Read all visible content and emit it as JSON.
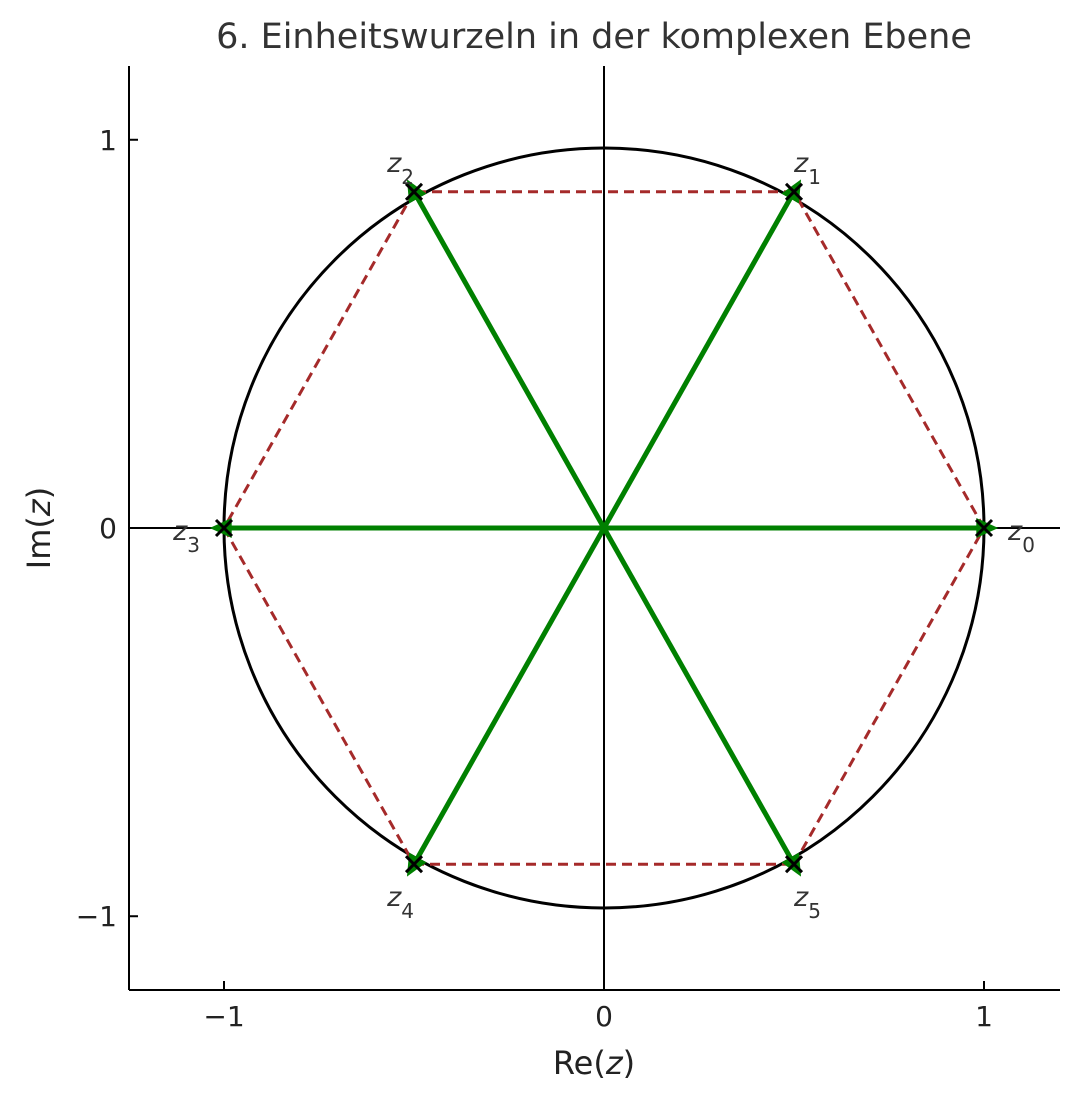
{
  "chart_data": {
    "type": "scatter",
    "title": "6. Einheitswurzeln in der komplexen Ebene",
    "xlabel": {
      "prefix": "Re(",
      "var": "z",
      "suffix": ")"
    },
    "ylabel": {
      "prefix": "Im(",
      "var": "z",
      "suffix": ")"
    },
    "xlim": [
      -1.25,
      1.2
    ],
    "ylim": [
      -1.19,
      1.19
    ],
    "xticks": [
      {
        "value": -1,
        "label": "−1"
      },
      {
        "value": 0,
        "label": "0"
      },
      {
        "value": 1,
        "label": "1"
      }
    ],
    "yticks": [
      {
        "value": -1,
        "label": "−1"
      },
      {
        "value": 0,
        "label": "0"
      },
      {
        "value": 1,
        "label": "1"
      }
    ],
    "grid": false,
    "unit_circle": {
      "radius": 1,
      "color": "#000000"
    },
    "polygon_color": "#a52a2a",
    "vector_color": "#008000",
    "marker_color": "#000000",
    "points": [
      {
        "x": 1.0,
        "y": 0.0,
        "label": "z",
        "index": "0",
        "label_pos": "right"
      },
      {
        "x": 0.5,
        "y": 0.866,
        "label": "z",
        "index": "1",
        "label_pos": "above-right"
      },
      {
        "x": -0.5,
        "y": 0.866,
        "label": "z",
        "index": "2",
        "label_pos": "above-left"
      },
      {
        "x": -1.0,
        "y": 0.0,
        "label": "z",
        "index": "3",
        "label_pos": "left"
      },
      {
        "x": -0.5,
        "y": -0.866,
        "label": "z",
        "index": "4",
        "label_pos": "below-left"
      },
      {
        "x": 0.5,
        "y": -0.866,
        "label": "z",
        "index": "5",
        "label_pos": "below-right"
      }
    ]
  }
}
